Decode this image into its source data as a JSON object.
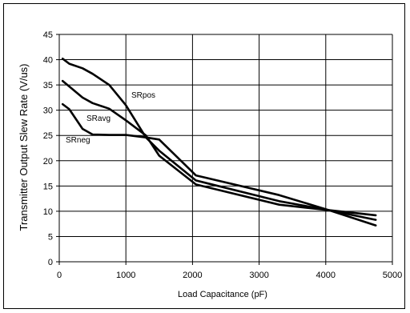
{
  "chart_data": {
    "type": "line",
    "title": "",
    "xlabel": "Load Capacitance (pF)",
    "ylabel": "Transmitter Output Slew Rate (V/us)",
    "xlim": [
      0,
      5000
    ],
    "ylim": [
      0,
      45
    ],
    "x_ticks": [
      0,
      1000,
      2000,
      3000,
      4000,
      5000
    ],
    "y_ticks": [
      0,
      5,
      10,
      15,
      20,
      25,
      30,
      35,
      40,
      45
    ],
    "grid": true,
    "legend": "none",
    "series": [
      {
        "name": "SRpos",
        "x": [
          50,
          150,
          350,
          500,
          750,
          1000,
          1300,
          1500,
          2050,
          3300,
          4050,
          4750
        ],
        "y": [
          40.2,
          39.2,
          38.3,
          37.2,
          35.0,
          31.0,
          24.6,
          22.0,
          16.1,
          12.0,
          10.2,
          9.2
        ]
      },
      {
        "name": "SRavg",
        "x": [
          50,
          150,
          350,
          500,
          750,
          1000,
          1300,
          1500,
          2050,
          3300,
          4050,
          4750
        ],
        "y": [
          35.8,
          34.7,
          32.5,
          31.4,
          30.3,
          28.0,
          25.0,
          21.0,
          15.3,
          11.3,
          10.2,
          7.2
        ]
      },
      {
        "name": "SRneg",
        "x": [
          50,
          150,
          350,
          500,
          750,
          1000,
          1300,
          1500,
          2050,
          3300,
          4050,
          4750
        ],
        "y": [
          31.2,
          30.2,
          26.3,
          25.2,
          25.1,
          25.1,
          24.6,
          24.2,
          17.1,
          13.2,
          10.2,
          8.3
        ]
      }
    ]
  }
}
